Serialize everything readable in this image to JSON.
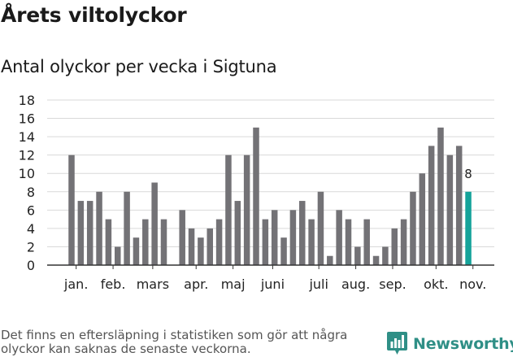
{
  "chart_data": {
    "type": "bar",
    "title": "Årets viltolyckor",
    "subtitle": "Antal olyckor per vecka i Sigtuna",
    "xlabel": "",
    "ylabel": "",
    "ylim": [
      0,
      18
    ],
    "yticks": [
      0,
      2,
      4,
      6,
      8,
      10,
      12,
      14,
      16,
      18
    ],
    "grid": true,
    "values": [
      12,
      7,
      7,
      8,
      5,
      2,
      8,
      3,
      5,
      9,
      5,
      0,
      6,
      4,
      3,
      4,
      5,
      12,
      7,
      12,
      15,
      5,
      6,
      3,
      6,
      7,
      5,
      8,
      1,
      6,
      5,
      2,
      5,
      1,
      2,
      4,
      5,
      8,
      10,
      13,
      15,
      12,
      13,
      8
    ],
    "highlight_index": 43,
    "highlight_label": "8",
    "month_labels": [
      {
        "label": "jan.",
        "week": 0.5
      },
      {
        "label": "feb.",
        "week": 4.5
      },
      {
        "label": "mars",
        "week": 8.8
      },
      {
        "label": "apr.",
        "week": 13.5
      },
      {
        "label": "maj",
        "week": 17.5
      },
      {
        "label": "juni",
        "week": 21.8
      },
      {
        "label": "juli",
        "week": 26.8
      },
      {
        "label": "aug.",
        "week": 30.8
      },
      {
        "label": "sep.",
        "week": 34.8
      },
      {
        "label": "okt.",
        "week": 39.5
      },
      {
        "label": "nov.",
        "week": 43.5
      }
    ],
    "colors": {
      "bar": "#737276",
      "highlight": "#15a39a",
      "grid": "#d9d9d9",
      "axis": "#333333"
    }
  },
  "footnote": "Det finns en eftersläpning i statistiken som gör att några olyckor kan saknas de senaste veckorna.",
  "brand": {
    "name": "Newsworthy",
    "icon": "newsworthy-logo-icon",
    "color": "#2f8f86"
  }
}
